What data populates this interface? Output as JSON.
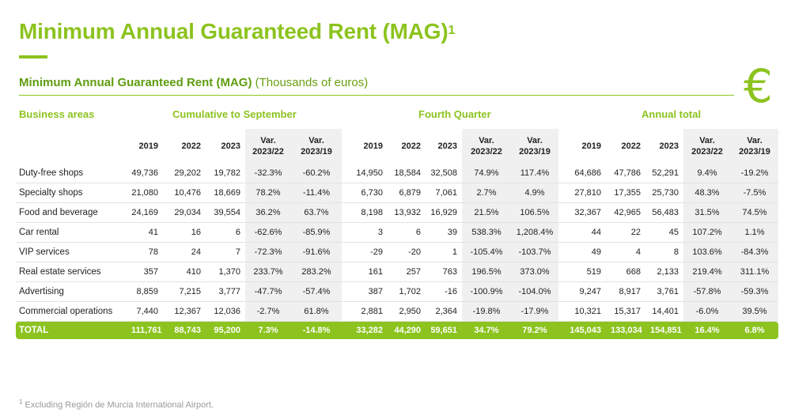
{
  "title": "Minimum Annual Guaranteed Rent (MAG)",
  "title_sup": "1",
  "subtitle": {
    "bold": "Minimum Annual Guaranteed Rent (MAG)",
    "normal": "(Thousands of euros)"
  },
  "icons": {
    "euro": "euro-icon"
  },
  "colors": {
    "accent": "#8cc31f",
    "shaded_column": "#f0f0f0"
  },
  "groups": {
    "business_areas": "Business areas",
    "cumulative": "Cumulative to September",
    "quarter": "Fourth Quarter",
    "annual": "Annual total"
  },
  "columns": [
    "2019",
    "2022",
    "2023",
    "Var. 2023/22",
    "Var. 2023/19",
    "2019",
    "2022",
    "2023",
    "Var. 2023/22",
    "Var. 2023/19",
    "2019",
    "2022",
    "2023",
    "Var. 2023/22",
    "Var. 2023/19"
  ],
  "rows": [
    {
      "label": "Duty-free shops",
      "values": [
        "49,736",
        "29,202",
        "19,782",
        "-32.3%",
        "-60.2%",
        "14,950",
        "18,584",
        "32,508",
        "74.9%",
        "117.4%",
        "64,686",
        "47,786",
        "52,291",
        "9.4%",
        "-19.2%"
      ]
    },
    {
      "label": "Specialty shops",
      "values": [
        "21,080",
        "10,476",
        "18,669",
        "78.2%",
        "-11.4%",
        "6,730",
        "6,879",
        "7,061",
        "2.7%",
        "4.9%",
        "27,810",
        "17,355",
        "25,730",
        "48.3%",
        "-7.5%"
      ]
    },
    {
      "label": "Food and beverage",
      "values": [
        "24,169",
        "29,034",
        "39,554",
        "36.2%",
        "63.7%",
        "8,198",
        "13,932",
        "16,929",
        "21.5%",
        "106.5%",
        "32,367",
        "42,965",
        "56,483",
        "31.5%",
        "74.5%"
      ]
    },
    {
      "label": "Car rental",
      "values": [
        "41",
        "16",
        "6",
        "-62.6%",
        "-85.9%",
        "3",
        "6",
        "39",
        "538.3%",
        "1,208.4%",
        "44",
        "22",
        "45",
        "107.2%",
        "1.1%"
      ]
    },
    {
      "label": "VIP services",
      "values": [
        "78",
        "24",
        "7",
        "-72.3%",
        "-91.6%",
        "-29",
        "-20",
        "1",
        "-105.4%",
        "-103.7%",
        "49",
        "4",
        "8",
        "103.6%",
        "-84.3%"
      ]
    },
    {
      "label": "Real estate services",
      "values": [
        "357",
        "410",
        "1,370",
        "233.7%",
        "283.2%",
        "161",
        "257",
        "763",
        "196.5%",
        "373.0%",
        "519",
        "668",
        "2,133",
        "219.4%",
        "311.1%"
      ]
    },
    {
      "label": "Advertising",
      "values": [
        "8,859",
        "7,215",
        "3,777",
        "-47.7%",
        "-57.4%",
        "387",
        "1,702",
        "-16",
        "-100.9%",
        "-104.0%",
        "9,247",
        "8,917",
        "3,761",
        "-57.8%",
        "-59.3%"
      ]
    },
    {
      "label": "Commercial operations",
      "values": [
        "7,440",
        "12,367",
        "12,036",
        "-2.7%",
        "61.8%",
        "2,881",
        "2,950",
        "2,364",
        "-19.8%",
        "-17.9%",
        "10,321",
        "15,317",
        "14,401",
        "-6.0%",
        "39.5%"
      ]
    }
  ],
  "total": {
    "label": "TOTAL",
    "values": [
      "111,761",
      "88,743",
      "95,200",
      "7.3%",
      "-14.8%",
      "33,282",
      "44,290",
      "59,651",
      "34.7%",
      "79.2%",
      "145,043",
      "133,034",
      "154,851",
      "16.4%",
      "6.8%"
    ]
  },
  "footnote": {
    "sup": "1",
    "text": "Excluding Región de Murcia International Airport."
  }
}
